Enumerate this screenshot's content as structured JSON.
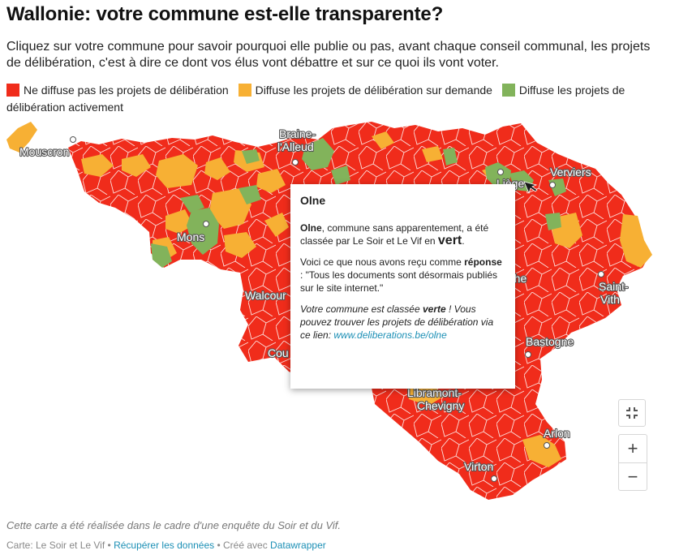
{
  "title": "Wallonie: votre commune est-elle transparente?",
  "intro": "Cliquez sur votre commune pour savoir pourquoi elle publie ou pas, avant chaque conseil communal, les projets de délibération, c'est à dire ce dont vos élus vont débattre et sur ce quoi ils vont voter.",
  "legend": [
    {
      "label": "Ne diffuse pas les projets de délibération",
      "color": "#f02c1b"
    },
    {
      "label": "Diffuse les projets de délibération sur demande",
      "color": "#f7b034"
    },
    {
      "label": "Diffuse les projets de délibération activement",
      "color": "#82b35b"
    }
  ],
  "cities": {
    "mouscron": "Mouscron",
    "braine_1": "Braine-",
    "braine_2": "l'Alleud",
    "liege": "Liège",
    "verviers": "Verviers",
    "mons": "Mons",
    "walcourt": "Walcour",
    "couvin": "Cou",
    "marche": "rche",
    "saint_vith_1": "Saint-",
    "saint_vith_2": "Vith",
    "bastogne": "Bastogne",
    "libramont_1": "Libramont-",
    "libramont_2": "Chevigny",
    "arlon": "Arlon",
    "virton": "Virton"
  },
  "tooltip": {
    "commune": "Olne",
    "p1_name": "Olne",
    "p1_text": ", commune sans apparentement, a été classée par Le Soir et Le Vif en ",
    "p1_class": "vert",
    "p1_end": ".",
    "p2_text": "Voici ce que nous avons reçu comme ",
    "p2_bold": "réponse",
    "p2_quote": " : \"Tous les documents sont désormais publiés sur le site internet.\"",
    "p3_a": "Votre commune est classée ",
    "p3_b": "verte",
    "p3_c": " ! Vous pouvez trouver les projets de délibération via ce lien: ",
    "p3_link": "www.deliberations.be/olne"
  },
  "controls": {
    "zoom_in": "+",
    "zoom_out": "−"
  },
  "note": "Cette carte a été réalisée dans le cadre d'une enquête du Soir et du Vif.",
  "footer": {
    "credit": "Carte: Le Soir et Le Vif",
    "sep": " • ",
    "data_link": "Récupérer les données",
    "made_with": "Créé avec ",
    "tool_link": "Datawrapper"
  },
  "colors": {
    "red": "#f02c1b",
    "orange": "#f7b034",
    "green": "#82b35b",
    "border": "#ffffff"
  }
}
